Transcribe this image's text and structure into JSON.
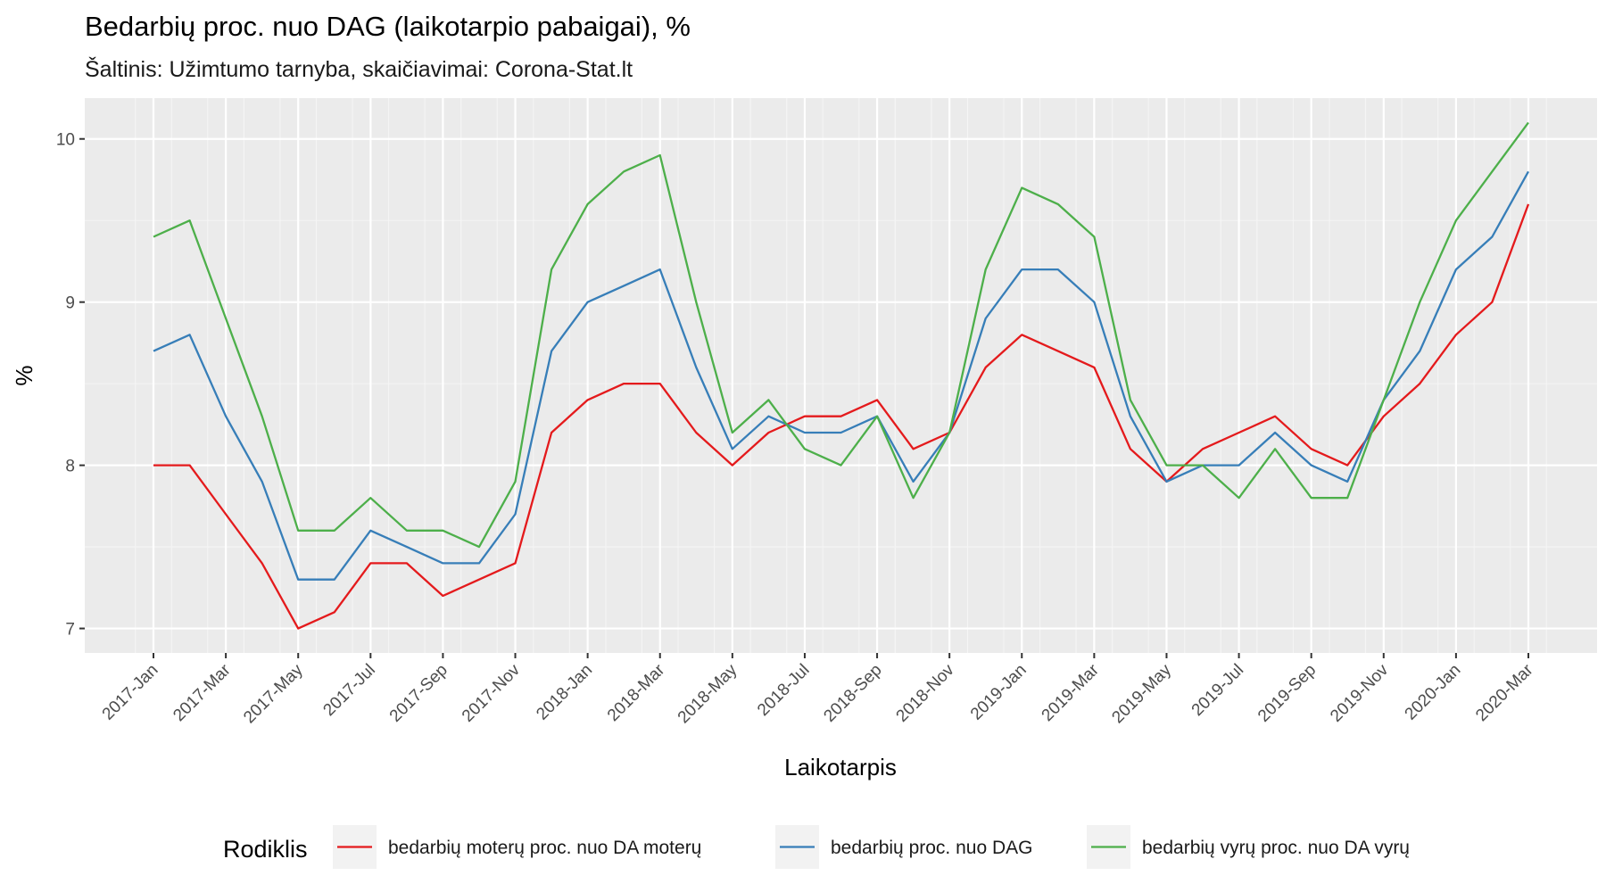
{
  "chart_data": {
    "type": "line",
    "title": "Bedarbių proc. nuo DAG (laikotarpio pabaigai), %",
    "subtitle": "Šaltinis: Užimtumo tarnyba, skaičiavimai: Corona-Stat.lt",
    "xlabel": "Laikotarpis",
    "ylabel": "%",
    "ylim": [
      6.85,
      10.25
    ],
    "yticks": [
      7,
      8,
      9,
      10
    ],
    "ytick_labels": [
      "7",
      "8",
      "9",
      "10"
    ],
    "x": [
      "2017-Jan",
      "2017-Feb",
      "2017-Mar",
      "2017-Apr",
      "2017-May",
      "2017-Jun",
      "2017-Jul",
      "2017-Aug",
      "2017-Sep",
      "2017-Oct",
      "2017-Nov",
      "2017-Dec",
      "2018-Jan",
      "2018-Feb",
      "2018-Mar",
      "2018-Apr",
      "2018-May",
      "2018-Jun",
      "2018-Jul",
      "2018-Aug",
      "2018-Sep",
      "2018-Oct",
      "2018-Nov",
      "2018-Dec",
      "2019-Jan",
      "2019-Feb",
      "2019-Mar",
      "2019-Apr",
      "2019-May",
      "2019-Jun",
      "2019-Jul",
      "2019-Aug",
      "2019-Sep",
      "2019-Oct",
      "2019-Nov",
      "2019-Dec",
      "2020-Jan",
      "2020-Feb",
      "2020-Mar"
    ],
    "xtick_labels": [
      "2017-Jan",
      "2017-Mar",
      "2017-May",
      "2017-Jul",
      "2017-Sep",
      "2017-Nov",
      "2018-Jan",
      "2018-Mar",
      "2018-May",
      "2018-Jul",
      "2018-Sep",
      "2018-Nov",
      "2019-Jan",
      "2019-Mar",
      "2019-May",
      "2019-Jul",
      "2019-Sep",
      "2019-Nov",
      "2020-Jan",
      "2020-Mar"
    ],
    "legend_title": "Rodiklis",
    "legend_position": "bottom",
    "series": [
      {
        "name": "bedarbių moterų proc. nuo DA moterų",
        "color": "#e41a1c",
        "values": [
          8.0,
          8.0,
          7.7,
          7.4,
          7.0,
          7.1,
          7.4,
          7.4,
          7.2,
          7.3,
          7.4,
          8.2,
          8.4,
          8.5,
          8.5,
          8.2,
          8.0,
          8.2,
          8.3,
          8.3,
          8.4,
          8.1,
          8.2,
          8.6,
          8.8,
          8.7,
          8.6,
          8.1,
          7.9,
          8.1,
          8.2,
          8.3,
          8.1,
          8.0,
          8.3,
          8.5,
          8.8,
          9.0,
          9.6
        ]
      },
      {
        "name": "bedarbių proc. nuo DAG",
        "color": "#377eb8",
        "values": [
          8.7,
          8.8,
          8.3,
          7.9,
          7.3,
          7.3,
          7.6,
          7.5,
          7.4,
          7.4,
          7.7,
          8.7,
          9.0,
          9.1,
          9.2,
          8.6,
          8.1,
          8.3,
          8.2,
          8.2,
          8.3,
          7.9,
          8.2,
          8.9,
          9.2,
          9.2,
          9.0,
          8.3,
          7.9,
          8.0,
          8.0,
          8.2,
          8.0,
          7.9,
          8.4,
          8.7,
          9.2,
          9.4,
          9.8
        ]
      },
      {
        "name": "bedarbių vyrų proc. nuo DA vyrų",
        "color": "#4daf4a",
        "values": [
          9.4,
          9.5,
          8.9,
          8.3,
          7.6,
          7.6,
          7.8,
          7.6,
          7.6,
          7.5,
          7.9,
          9.2,
          9.6,
          9.8,
          9.9,
          9.0,
          8.2,
          8.4,
          8.1,
          8.0,
          8.3,
          7.8,
          8.2,
          9.2,
          9.7,
          9.6,
          9.4,
          8.4,
          8.0,
          8.0,
          7.8,
          8.1,
          7.8,
          7.8,
          8.4,
          9.0,
          9.5,
          9.8,
          10.1
        ]
      }
    ]
  }
}
